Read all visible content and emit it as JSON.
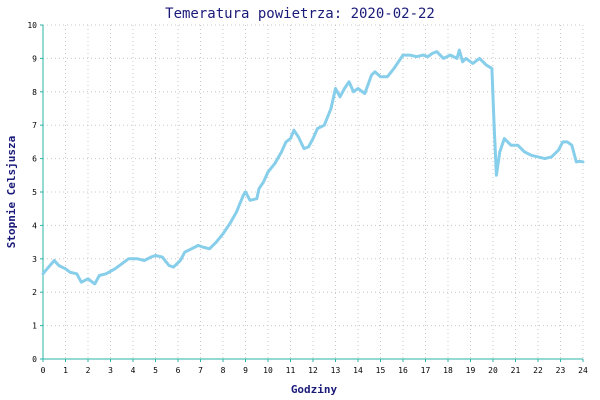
{
  "chart_data": {
    "type": "line",
    "title": "Temeratura powietrza: 2020-02-22",
    "xlabel": "Godziny",
    "ylabel": "Stopnie Celsjusza",
    "xlim": [
      0,
      24
    ],
    "ylim": [
      0,
      10
    ],
    "xticks": [
      "0",
      "1",
      "2",
      "3",
      "4",
      "5",
      "6",
      "7",
      "8",
      "9",
      "10",
      "11",
      "12",
      "13",
      "14",
      "15",
      "16",
      "17",
      "18",
      "19",
      "20",
      "21",
      "22",
      "23",
      "24"
    ],
    "yticks": [
      "0",
      "1",
      "2",
      "3",
      "4",
      "5",
      "6",
      "7",
      "8",
      "9",
      "10"
    ],
    "grid": true,
    "line_color": "#87ceeb",
    "axis_color": "#2ab5a5",
    "grid_color": "#c8c8c8",
    "series": [
      {
        "x": [
          0,
          0.25,
          0.5,
          0.7,
          1.0,
          1.2,
          1.5,
          1.7,
          2.0,
          2.3,
          2.5,
          2.8,
          3.2,
          3.5,
          3.8,
          4.2,
          4.5,
          4.8,
          5.0,
          5.3,
          5.6,
          5.8,
          6.1,
          6.3,
          6.6,
          6.9,
          7.1,
          7.4,
          7.7,
          8.0,
          8.3,
          8.6,
          8.9,
          9.0,
          9.2,
          9.5,
          9.6,
          9.8,
          10.0,
          10.3,
          10.6,
          10.8,
          11.0,
          11.15,
          11.35,
          11.6,
          11.8,
          12.0,
          12.2,
          12.5,
          12.8,
          13.0,
          13.2,
          13.4,
          13.6,
          13.8,
          14.0,
          14.3,
          14.6,
          14.75,
          15.0,
          15.3,
          15.6,
          16.0,
          16.3,
          16.6,
          16.9,
          17.1,
          17.3,
          17.5,
          17.8,
          18.1,
          18.4,
          18.5,
          18.65,
          18.8,
          19.1,
          19.4,
          19.7,
          19.95,
          20.05,
          20.15,
          20.3,
          20.5,
          20.8,
          21.1,
          21.4,
          21.7,
          22.0,
          22.3,
          22.6,
          22.9,
          23.1,
          23.3,
          23.5,
          23.7,
          23.85,
          24.0
        ],
        "y": [
          2.55,
          2.75,
          2.95,
          2.8,
          2.7,
          2.6,
          2.55,
          2.3,
          2.4,
          2.25,
          2.5,
          2.55,
          2.7,
          2.85,
          3.0,
          3.0,
          2.95,
          3.05,
          3.1,
          3.05,
          2.8,
          2.75,
          2.95,
          3.2,
          3.3,
          3.4,
          3.35,
          3.3,
          3.5,
          3.75,
          4.05,
          4.4,
          4.9,
          5.0,
          4.75,
          4.8,
          5.1,
          5.3,
          5.6,
          5.85,
          6.2,
          6.5,
          6.6,
          6.85,
          6.65,
          6.3,
          6.35,
          6.6,
          6.9,
          7.0,
          7.5,
          8.1,
          7.85,
          8.1,
          8.3,
          8.0,
          8.1,
          7.95,
          8.5,
          8.6,
          8.45,
          8.45,
          8.7,
          9.1,
          9.1,
          9.05,
          9.1,
          9.05,
          9.15,
          9.2,
          9.0,
          9.1,
          9.0,
          9.25,
          8.9,
          9.0,
          8.85,
          9.0,
          8.8,
          8.7,
          7.0,
          5.5,
          6.2,
          6.6,
          6.4,
          6.4,
          6.2,
          6.1,
          6.05,
          6.0,
          6.05,
          6.25,
          6.5,
          6.5,
          6.4,
          5.9,
          5.92,
          5.9
        ]
      }
    ]
  }
}
